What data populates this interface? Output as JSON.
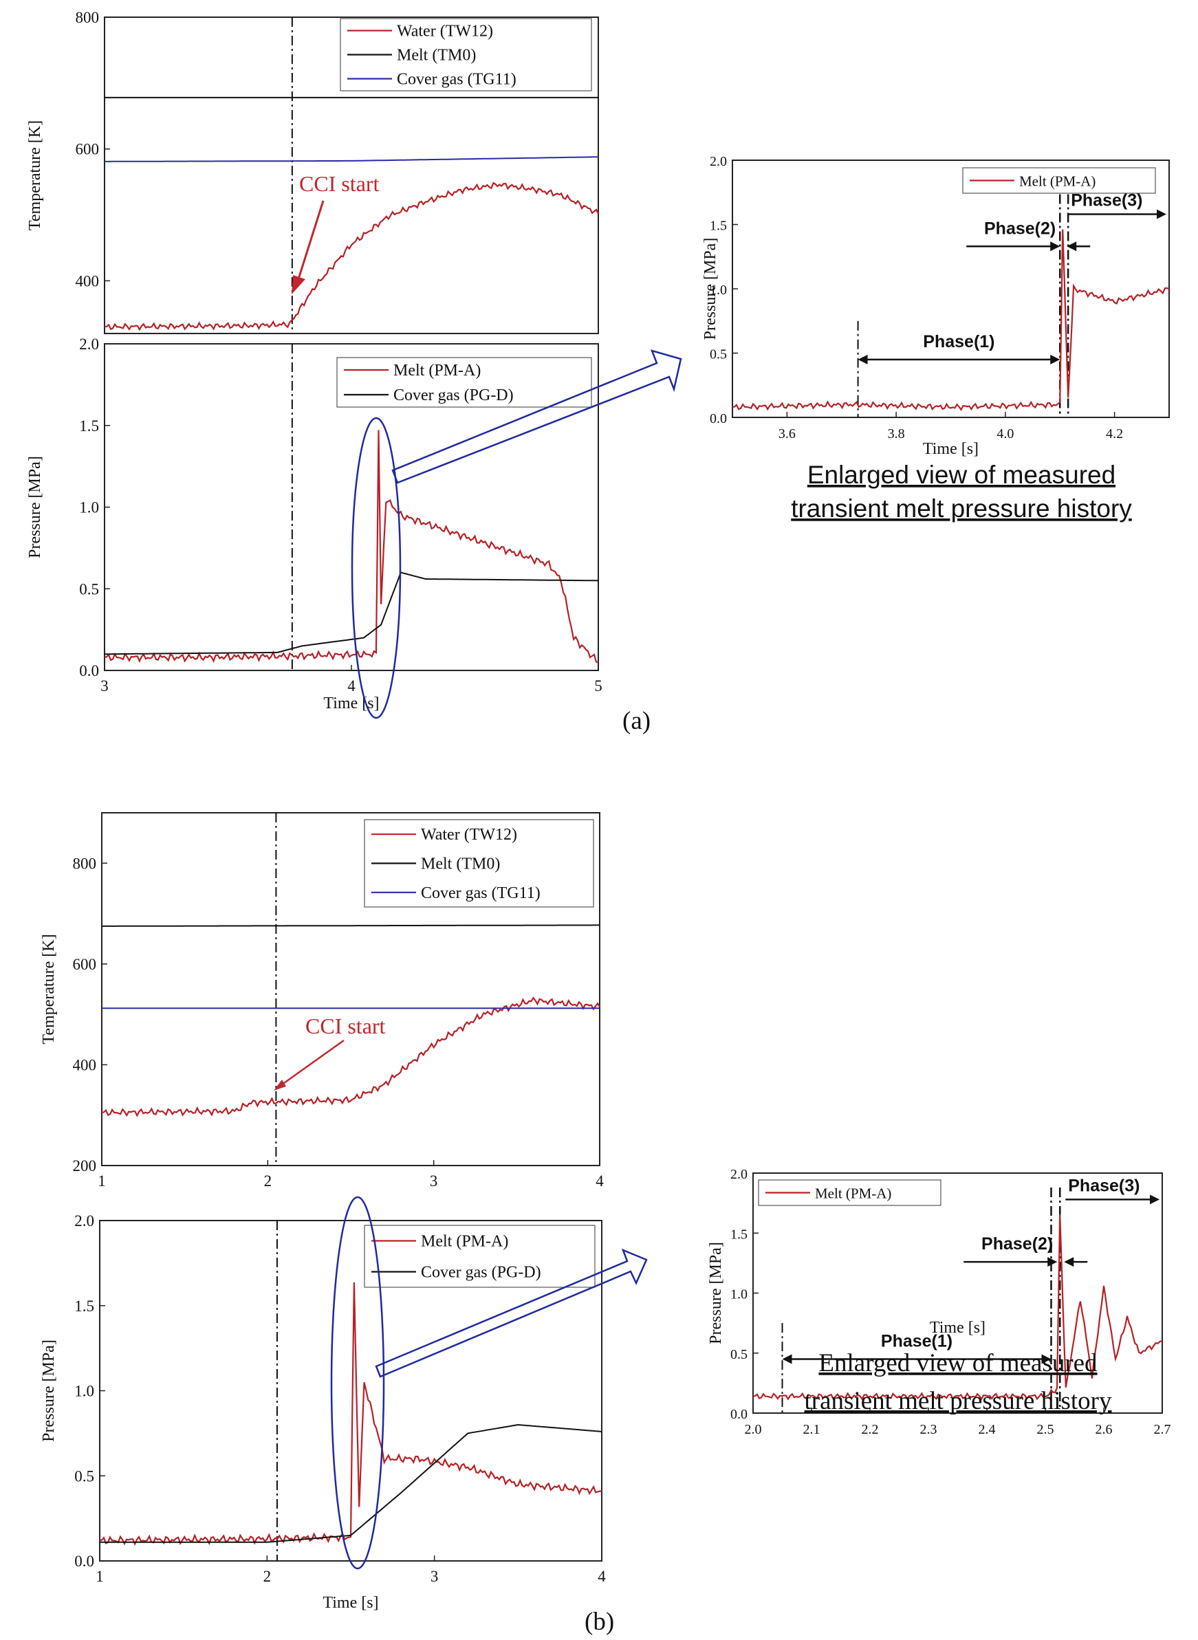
{
  "figure": {
    "panel_a_label": "(a)",
    "panel_b_label": "(b)",
    "caption_line1": "Enlarged view of measured",
    "caption_line2": "transient melt pressure history",
    "cci_label": "CCI start",
    "colors": {
      "water": "#b72025",
      "melt": "#111111",
      "cover_gas": "#2a2aa8",
      "highlight": "#1f2a9c"
    }
  },
  "chart_data": [
    {
      "id": "a-temp",
      "type": "line",
      "ylabel": "Temperature [K]",
      "xlabel": "",
      "xlim": [
        3,
        5
      ],
      "ylim": [
        320,
        800
      ],
      "yticks": [
        400,
        600,
        800
      ],
      "xticks": [],
      "series": [
        {
          "name": "Water (TW12)",
          "color": "#b72025",
          "points": [
            [
              3.0,
              330
            ],
            [
              3.3,
              331
            ],
            [
              3.6,
              332
            ],
            [
              3.75,
              334
            ],
            [
              3.85,
              390
            ],
            [
              4.0,
              455
            ],
            [
              4.15,
              498
            ],
            [
              4.3,
              520
            ],
            [
              4.45,
              538
            ],
            [
              4.6,
              546
            ],
            [
              4.75,
              538
            ],
            [
              4.85,
              530
            ],
            [
              5.0,
              502
            ]
          ]
        },
        {
          "name": "Melt (TM0)",
          "color": "#111111",
          "points": [
            [
              3.0,
              678
            ],
            [
              5.0,
              678
            ]
          ]
        },
        {
          "name": "Cover gas (TG11)",
          "color": "#2a2aa8",
          "points": [
            [
              3.0,
              581
            ],
            [
              4.0,
              582
            ],
            [
              5.0,
              588
            ]
          ]
        }
      ]
    },
    {
      "id": "a-pres",
      "type": "line",
      "ylabel": "Pressure [MPa]",
      "xlabel": "Time [s]",
      "xlim": [
        3,
        5
      ],
      "ylim": [
        0,
        2.0
      ],
      "yticks": [
        "0.0",
        "0.5",
        "1.0",
        "1.5",
        "2.0"
      ],
      "xticks": [
        "3",
        "4",
        "5"
      ],
      "series": [
        {
          "name": "Melt (PM-A)",
          "color": "#b72025",
          "points": [
            [
              3.0,
              0.08
            ],
            [
              3.4,
              0.08
            ],
            [
              3.8,
              0.09
            ],
            [
              4.1,
              0.1
            ],
            [
              4.11,
              1.47
            ],
            [
              4.12,
              0.4
            ],
            [
              4.14,
              1.05
            ],
            [
              4.2,
              0.95
            ],
            [
              4.4,
              0.85
            ],
            [
              4.6,
              0.75
            ],
            [
              4.8,
              0.65
            ],
            [
              4.85,
              0.55
            ],
            [
              4.9,
              0.2
            ],
            [
              5.0,
              0.05
            ]
          ]
        },
        {
          "name": "Cover gas (PG-D)",
          "color": "#111111",
          "points": [
            [
              3.0,
              0.1
            ],
            [
              3.7,
              0.11
            ],
            [
              3.8,
              0.15
            ],
            [
              4.05,
              0.2
            ],
            [
              4.12,
              0.28
            ],
            [
              4.2,
              0.6
            ],
            [
              4.3,
              0.56
            ],
            [
              5.0,
              0.55
            ]
          ]
        }
      ]
    },
    {
      "id": "a-zoom",
      "type": "line",
      "ylabel": "Pressure [MPa]",
      "xlabel": "Time [s]",
      "xlim": [
        3.5,
        4.3
      ],
      "ylim": [
        0,
        2.0
      ],
      "yticks": [
        "0.0",
        "0.5",
        "1.0",
        "1.5",
        "2.0"
      ],
      "xticks": [
        "3.6",
        "3.8",
        "4.0",
        "4.2"
      ],
      "series": [
        {
          "name": "Melt (PM-A)",
          "color": "#b72025",
          "points": [
            [
              3.5,
              0.08
            ],
            [
              3.72,
              0.1
            ],
            [
              3.9,
              0.08
            ],
            [
              4.1,
              0.1
            ],
            [
              4.105,
              1.47
            ],
            [
              4.115,
              0.15
            ],
            [
              4.125,
              1.0
            ],
            [
              4.2,
              0.9
            ],
            [
              4.3,
              1.0
            ]
          ]
        }
      ],
      "annotations": {
        "phase1": "Phase(1)",
        "phase2": "Phase(2)",
        "phase3": "Phase(3)"
      }
    },
    {
      "id": "b-temp",
      "type": "line",
      "ylabel": "Temperature [K]",
      "xlabel": "",
      "xlim": [
        1,
        4
      ],
      "ylim": [
        200,
        900
      ],
      "yticks": [
        "200",
        "400",
        "600",
        "800"
      ],
      "xticks": [
        "1",
        "2",
        "3",
        "4"
      ],
      "series": [
        {
          "name": "Water (TW12)",
          "color": "#b72025",
          "points": [
            [
              1.0,
              305
            ],
            [
              1.8,
              308
            ],
            [
              1.9,
              325
            ],
            [
              2.5,
              330
            ],
            [
              2.7,
              360
            ],
            [
              3.0,
              440
            ],
            [
              3.3,
              500
            ],
            [
              3.6,
              528
            ],
            [
              4.0,
              515
            ]
          ]
        },
        {
          "name": "Melt (TM0)",
          "color": "#111111",
          "points": [
            [
              1.0,
              675
            ],
            [
              4.0,
              677
            ]
          ]
        },
        {
          "name": "Cover gas (TG11)",
          "color": "#2a2aa8",
          "points": [
            [
              1.0,
              512
            ],
            [
              4.0,
              512
            ]
          ]
        }
      ]
    },
    {
      "id": "b-pres",
      "type": "line",
      "ylabel": "Pressure [MPa]",
      "xlabel": "Time [s]",
      "xlim": [
        1,
        4
      ],
      "ylim": [
        0,
        2.0
      ],
      "yticks": [
        "0.0",
        "0.5",
        "1.0",
        "1.5",
        "2.0"
      ],
      "xticks": [
        "1",
        "2",
        "3",
        "4"
      ],
      "series": [
        {
          "name": "Melt (PM-A)",
          "color": "#b72025",
          "points": [
            [
              1.0,
              0.12
            ],
            [
              2.0,
              0.13
            ],
            [
              2.5,
              0.14
            ],
            [
              2.52,
              1.65
            ],
            [
              2.55,
              0.3
            ],
            [
              2.58,
              1.05
            ],
            [
              2.7,
              0.6
            ],
            [
              2.9,
              0.6
            ],
            [
              3.2,
              0.55
            ],
            [
              3.5,
              0.45
            ],
            [
              4.0,
              0.41
            ]
          ]
        },
        {
          "name": "Cover gas (PG-D)",
          "color": "#111111",
          "points": [
            [
              1.0,
              0.11
            ],
            [
              2.0,
              0.11
            ],
            [
              2.5,
              0.15
            ],
            [
              2.8,
              0.4
            ],
            [
              3.2,
              0.75
            ],
            [
              3.5,
              0.8
            ],
            [
              4.0,
              0.76
            ]
          ]
        }
      ]
    },
    {
      "id": "b-zoom",
      "type": "line",
      "ylabel": "Pressure [MPa]",
      "xlabel": "Time [s]",
      "xlim": [
        2.0,
        2.7
      ],
      "ylim": [
        0,
        2.0
      ],
      "yticks": [
        "0.0",
        "0.5",
        "1.0",
        "1.5",
        "2.0"
      ],
      "xticks": [
        "2.0",
        "2.1",
        "2.2",
        "2.3",
        "2.4",
        "2.5",
        "2.6",
        "2.7"
      ],
      "series": [
        {
          "name": "Melt (PM-A)",
          "color": "#b72025",
          "points": [
            [
              2.0,
              0.14
            ],
            [
              2.5,
              0.14
            ],
            [
              2.52,
              0.2
            ],
            [
              2.525,
              1.65
            ],
            [
              2.535,
              0.2
            ],
            [
              2.56,
              0.95
            ],
            [
              2.58,
              0.3
            ],
            [
              2.6,
              1.05
            ],
            [
              2.62,
              0.45
            ],
            [
              2.64,
              0.8
            ],
            [
              2.66,
              0.5
            ],
            [
              2.7,
              0.6
            ]
          ]
        }
      ],
      "annotations": {
        "phase1": "Phase(1)",
        "phase2": "Phase(2)",
        "phase3": "Phase(3)"
      }
    }
  ]
}
